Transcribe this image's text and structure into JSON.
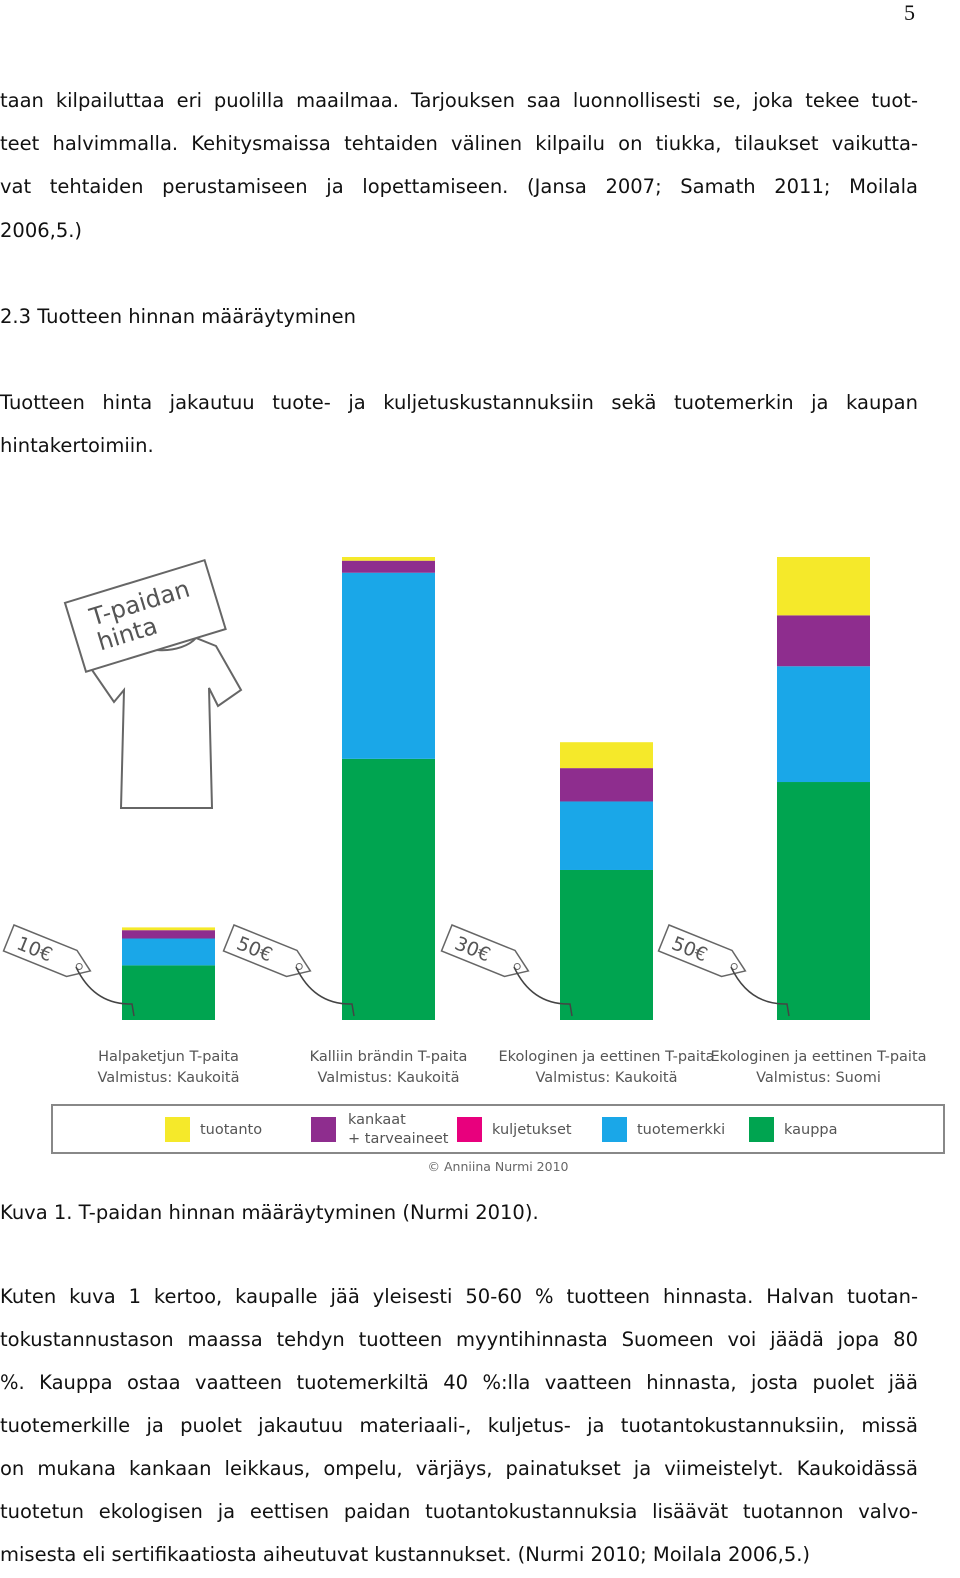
{
  "page_number": "5",
  "paragraphs": [
    {
      "lines": [
        "taan kilpailuttaa eri puolilla maailmaa. Tarjouksen saa luonnollisesti se, joka tekee tuot-",
        "teet halvimmalla. Kehitysmaissa tehtaiden välinen kilpailu on tiukka, tilaukset vaikutta-",
        "vat tehtaiden perustamiseen ja lopettamiseen. (Jansa 2007; Samath 2011; Moilala",
        "2006,5.)"
      ]
    },
    {
      "lines": [
        "Tuotteen hinta jakautuu tuote- ja kuljetuskustannuksiin sekä tuotemerkin ja kaupan",
        "hintakertoimiin."
      ]
    },
    {
      "lines": [
        "Kuten kuva 1 kertoo, kaupalle jää yleisesti 50-60 % tuotteen hinnasta. Halvan tuotan-",
        "tokustannustason maassa tehdyn tuotteen myyntihinnasta Suomeen voi jäädä jopa 80",
        "%. Kauppa ostaa vaatteen tuotemerkiltä 40 %:lla vaatteen hinnasta, josta puolet jää",
        "tuotemerkille ja puolet jakautuu materiaali-, kuljetus- ja tuotantokustannuksiin, missä",
        "on mukana kankaan leikkaus, ompelu, värjäys, painatukset ja viimeistelyt. Kaukoidässä",
        "tuotetun ekologisen ja eettisen paidan tuotantokustannuksia lisäävät tuotannon valvo-",
        "misesta eli sertifikaatiosta aiheutuvat kustannukset. (Nurmi 2010; Moilala 2006,5.)"
      ]
    }
  ],
  "heading": "2.3 Tuotteen hinnan määräytyminen",
  "caption": "Kuva 1. T-paidan hinnan määräytyminen (Nurmi 2010).",
  "chart_data": {
    "type": "stacked-bar",
    "sign": [
      "T-paidan",
      "hinta"
    ],
    "price_tags": [
      "10€",
      "50€",
      "30€",
      "50€"
    ],
    "categories": [
      "Halpaketjun T-paita",
      "Kalliin brändin T-paita",
      "Ekologinen ja eettinen T-paita",
      "Ekologinen ja eettinen T-paita"
    ],
    "origins": [
      "Valmistus: Kaukoitä",
      "Valmistus: Kaukoitä",
      "Valmistus: Kaukoitä",
      "Valmistus: Suomi"
    ],
    "ylim": [
      0,
      50
    ],
    "series": [
      {
        "name": "tuotanto",
        "color": "#f5e92a",
        "values": [
          0.3,
          0.4,
          2.8,
          6.3
        ]
      },
      {
        "name": [
          "kankaat",
          "+ tarveaineet"
        ],
        "color": "#8e2d8e",
        "values": [
          0.9,
          1.3,
          3.6,
          5.5
        ]
      },
      {
        "name": "kuljetukset",
        "color": "#e8007d",
        "values": [
          0,
          0,
          0,
          0
        ]
      },
      {
        "name": "tuotemerkki",
        "color": "#1aa7e8",
        "values": [
          2.9,
          20.1,
          7.4,
          12.5
        ]
      },
      {
        "name": "kauppa",
        "color": "#00a450",
        "values": [
          5.9,
          28.2,
          16.2,
          25.7
        ]
      }
    ],
    "copyright": "© Anniina Nurmi 2010"
  }
}
